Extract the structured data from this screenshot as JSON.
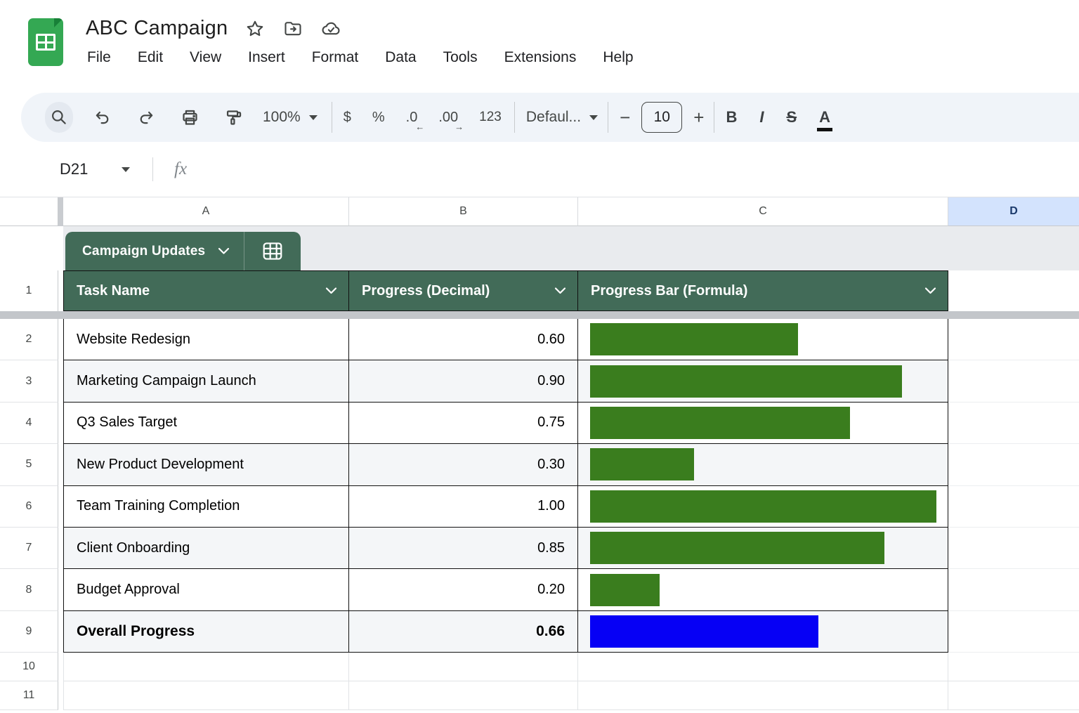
{
  "app": {
    "title": "ABC Campaign",
    "menus": [
      "File",
      "Edit",
      "View",
      "Insert",
      "Format",
      "Data",
      "Tools",
      "Extensions",
      "Help"
    ]
  },
  "toolbar": {
    "zoom_value": "100%",
    "currency_label": "$",
    "percent_label": "%",
    "decrease_decimal_label": ".0",
    "increase_decimal_label": ".00",
    "decrease_decimal_arrow": "←",
    "increase_decimal_arrow": "→",
    "more_formats_label": "123",
    "font_label": "Defaul...",
    "font_size_value": "10",
    "decrease_size_label": "−",
    "increase_size_label": "+",
    "bold_label": "B",
    "italic_label": "I",
    "strikethrough_label": "S",
    "text_color_label": "A"
  },
  "formula_bar": {
    "cell_reference": "D21",
    "fx_label": "fx"
  },
  "grid": {
    "column_letters": [
      "A",
      "B",
      "C",
      "D"
    ],
    "selected_column": "D",
    "header_row_number": "1",
    "empty_row_numbers": [
      "10",
      "11"
    ]
  },
  "sheet": {
    "table_chip_label": "Campaign Updates",
    "columns": [
      "Task Name",
      "Progress (Decimal)",
      "Progress Bar (Formula)"
    ],
    "rows": [
      {
        "row": "2",
        "task": "Website Redesign",
        "progress": "0.60",
        "bar_value": 0.6,
        "bar_color": "green",
        "bold": false
      },
      {
        "row": "3",
        "task": "Marketing Campaign Launch",
        "progress": "0.90",
        "bar_value": 0.9,
        "bar_color": "green",
        "bold": false
      },
      {
        "row": "4",
        "task": "Q3 Sales Target",
        "progress": "0.75",
        "bar_value": 0.75,
        "bar_color": "green",
        "bold": false
      },
      {
        "row": "5",
        "task": "New Product Development",
        "progress": "0.30",
        "bar_value": 0.3,
        "bar_color": "green",
        "bold": false
      },
      {
        "row": "6",
        "task": "Team Training Completion",
        "progress": "1.00",
        "bar_value": 1.0,
        "bar_color": "green",
        "bold": false
      },
      {
        "row": "7",
        "task": "Client Onboarding",
        "progress": "0.85",
        "bar_value": 0.85,
        "bar_color": "green",
        "bold": false
      },
      {
        "row": "8",
        "task": "Budget Approval",
        "progress": "0.20",
        "bar_value": 0.2,
        "bar_color": "green",
        "bold": false
      },
      {
        "row": "9",
        "task": "Overall Progress",
        "progress": "0.66",
        "bar_value": 0.66,
        "bar_color": "blue",
        "bold": true
      }
    ]
  },
  "colors": {
    "table_green": "#426b58",
    "bar_green": "#3a7d1e",
    "bar_blue": "#0600f5",
    "selected_col_bg": "#d3e3fd",
    "selected_col_text": "#1b3a6b"
  }
}
